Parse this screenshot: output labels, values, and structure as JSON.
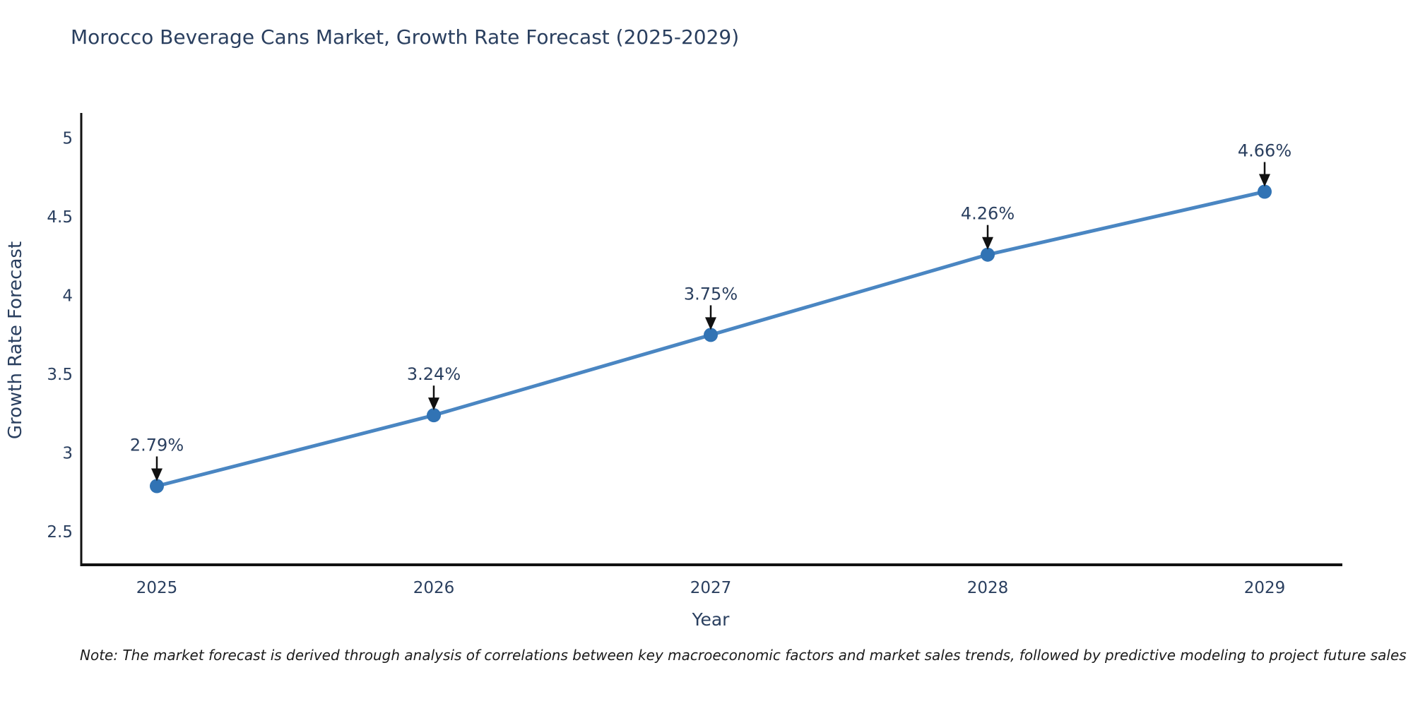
{
  "title": "Morocco Beverage Cans Market, Growth Rate Forecast (2025-2029)",
  "note": "Note: The market forecast is derived through analysis of correlations between key macroeconomic factors and market sales trends, followed by predictive modeling to project future sales",
  "colors": {
    "background": "#ffffff",
    "text": "#2a3f5f",
    "axis_line": "#111111",
    "line": "#4a86c2",
    "marker": "#3173b4",
    "arrow": "#111111",
    "note_text": "#1b1b1b"
  },
  "chart_data": {
    "type": "line",
    "title": "Morocco Beverage Cans Market, Growth Rate Forecast (2025-2029)",
    "categories": [
      "2025",
      "2026",
      "2027",
      "2028",
      "2029"
    ],
    "values": [
      2.79,
      3.24,
      3.75,
      4.26,
      4.66
    ],
    "point_labels": [
      "2.79%",
      "3.24%",
      "3.75%",
      "4.26%",
      "4.66%"
    ],
    "series_name": "Growth Rate Forecast",
    "xlabel": "Year",
    "ylabel": "Growth Rate Forecast",
    "ylim": [
      2.29,
      5.16
    ],
    "yticks": [
      2.5,
      3,
      3.5,
      4,
      4.5,
      5
    ],
    "grid": false,
    "legend_position": "none",
    "marker_style": "circle",
    "annotation_style": "value labels with black arrows pointing down at each data point"
  }
}
